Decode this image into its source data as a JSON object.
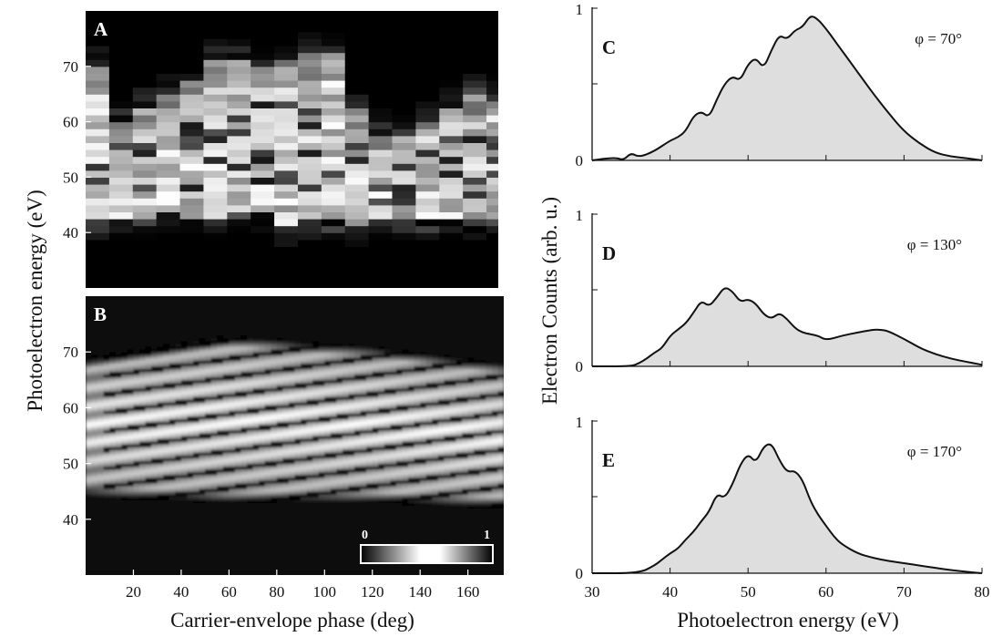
{
  "axes": {
    "left_ylabel": "Photoelectron energy (eV)",
    "left_xlabel": "Carrier-envelope phase (deg)",
    "right_ylabel": "Electron Counts (arb. u.)",
    "right_xlabel": "Photoelectron energy (eV)"
  },
  "colorbar": {
    "min_label": "0",
    "max_label": "1",
    "colormap": "black-white-black (gray)"
  },
  "chart_data": [
    {
      "panel": "A",
      "type": "heatmap",
      "x_ticks": [
        20,
        40,
        60,
        80,
        100,
        120,
        140,
        160
      ],
      "y_ticks": [
        40,
        50,
        60,
        70
      ],
      "xlim": [
        0,
        175
      ],
      "ylim": [
        30,
        80
      ],
      "phase_bins": [
        0,
        10,
        20,
        30,
        40,
        50,
        60,
        70,
        80,
        90,
        100,
        110,
        120,
        130,
        140,
        150,
        160,
        170
      ],
      "bright_band_upper_eV": [
        70,
        60,
        63,
        65,
        67,
        71,
        71,
        70,
        71,
        72,
        72,
        62,
        58,
        57,
        60,
        63,
        65,
        64
      ],
      "bright_band_lower_eV": [
        42,
        43,
        43,
        44,
        43,
        43,
        44,
        44,
        41,
        42,
        42,
        41,
        42,
        42,
        42,
        43,
        42,
        43
      ]
    },
    {
      "panel": "B",
      "type": "heatmap",
      "x_ticks": [
        20,
        40,
        60,
        80,
        100,
        120,
        140,
        160
      ],
      "y_ticks": [
        40,
        50,
        60,
        70
      ],
      "xlim": [
        0,
        175
      ],
      "ylim": [
        30,
        80
      ],
      "bright_band_upper_eV": {
        "x": [
          0,
          60,
          120,
          175
        ],
        "y": [
          67,
          71,
          69,
          66
        ]
      },
      "bright_band_lower_eV": {
        "x": [
          0,
          60,
          120,
          175
        ],
        "y": [
          46,
          45,
          45,
          44
        ]
      }
    },
    {
      "panel": "C",
      "type": "area",
      "label": "C",
      "annotation": "φ = 70°",
      "x_ticks": [
        30,
        40,
        50,
        60,
        70,
        80
      ],
      "y_ticks": [
        "0",
        "1"
      ],
      "xlim": [
        30,
        80
      ],
      "ylim": [
        0,
        1
      ],
      "x": [
        30,
        33,
        34,
        35,
        36,
        38,
        40,
        41,
        42,
        43,
        44,
        45,
        46,
        47,
        48,
        49,
        50,
        51,
        52,
        53,
        54,
        55,
        56,
        57,
        58,
        59,
        60,
        61,
        62,
        63,
        64,
        65,
        66,
        68,
        70,
        72,
        74,
        76,
        78,
        80
      ],
      "y": [
        0,
        0.02,
        0,
        0.05,
        0.02,
        0.06,
        0.13,
        0.15,
        0.19,
        0.29,
        0.32,
        0.28,
        0.4,
        0.5,
        0.55,
        0.52,
        0.63,
        0.67,
        0.6,
        0.72,
        0.82,
        0.79,
        0.85,
        0.87,
        0.95,
        0.92,
        0.86,
        0.79,
        0.72,
        0.65,
        0.58,
        0.51,
        0.44,
        0.31,
        0.19,
        0.11,
        0.05,
        0.025,
        0.015,
        0
      ]
    },
    {
      "panel": "D",
      "type": "area",
      "label": "D",
      "annotation": "φ = 130°",
      "x_ticks": [
        30,
        40,
        50,
        60,
        70,
        80
      ],
      "y_ticks": [
        "0",
        "1"
      ],
      "xlim": [
        30,
        80
      ],
      "ylim": [
        0,
        1
      ],
      "x": [
        30,
        35,
        36,
        37,
        38,
        39,
        40,
        41,
        42,
        43,
        44,
        45,
        46,
        47,
        48,
        49,
        50,
        51,
        52,
        53,
        54,
        55,
        56,
        57,
        58,
        59,
        60,
        62,
        64,
        66,
        67,
        68,
        70,
        72,
        74,
        76,
        78,
        80
      ],
      "y": [
        0,
        0,
        0.02,
        0.05,
        0.09,
        0.12,
        0.2,
        0.24,
        0.28,
        0.35,
        0.43,
        0.39,
        0.45,
        0.52,
        0.49,
        0.42,
        0.44,
        0.41,
        0.34,
        0.31,
        0.35,
        0.31,
        0.25,
        0.22,
        0.21,
        0.2,
        0.17,
        0.2,
        0.22,
        0.24,
        0.24,
        0.23,
        0.18,
        0.12,
        0.08,
        0.05,
        0.03,
        0.01
      ]
    },
    {
      "panel": "E",
      "type": "area",
      "label": "E",
      "annotation": "φ = 170°",
      "x_ticks": [
        30,
        40,
        50,
        60,
        70,
        80
      ],
      "y_ticks": [
        "0",
        "1"
      ],
      "xlim": [
        30,
        80
      ],
      "ylim": [
        0,
        1
      ],
      "x": [
        30,
        36,
        38,
        39,
        40,
        41,
        42,
        43,
        44,
        45,
        46,
        47,
        48,
        49,
        50,
        51,
        52,
        53,
        54,
        55,
        56,
        57,
        58,
        59,
        60,
        61,
        62,
        64,
        66,
        68,
        70,
        72,
        74,
        76,
        78,
        80
      ],
      "y": [
        0,
        0,
        0.05,
        0.09,
        0.13,
        0.16,
        0.22,
        0.27,
        0.34,
        0.4,
        0.52,
        0.49,
        0.58,
        0.71,
        0.78,
        0.72,
        0.83,
        0.85,
        0.74,
        0.66,
        0.67,
        0.61,
        0.47,
        0.38,
        0.31,
        0.24,
        0.19,
        0.13,
        0.1,
        0.08,
        0.065,
        0.05,
        0.035,
        0.02,
        0.01,
        0
      ]
    }
  ]
}
